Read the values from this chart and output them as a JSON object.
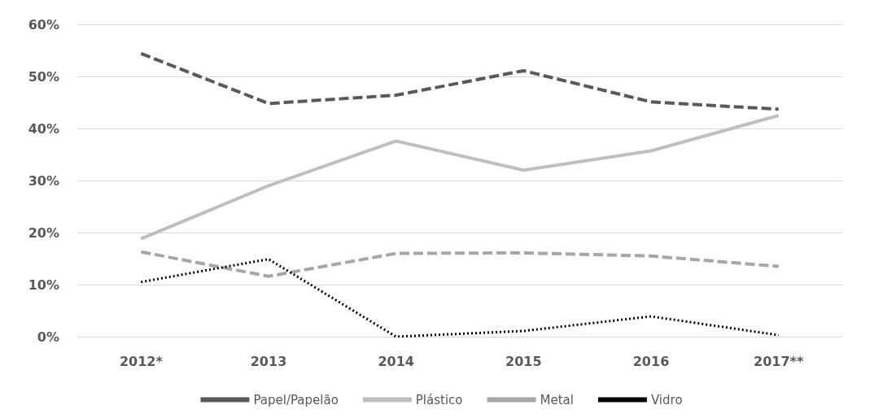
{
  "chart_data": {
    "type": "line",
    "categories": [
      "2012*",
      "2013",
      "2014",
      "2015",
      "2016",
      "2017**"
    ],
    "series": [
      {
        "name": "Papel/Papelão",
        "color": "#595959",
        "line_style": "dashed",
        "values": [
          54.4,
          44.8,
          46.4,
          51.1,
          45.1,
          43.7
        ]
      },
      {
        "name": "Plástico",
        "color": "#bfbfbf",
        "line_style": "solid",
        "values": [
          18.8,
          29.0,
          37.6,
          32.0,
          35.7,
          42.5
        ]
      },
      {
        "name": "Metal",
        "color": "#a6a6a6",
        "line_style": "dashed",
        "values": [
          16.3,
          11.6,
          16.0,
          16.1,
          15.5,
          13.5
        ]
      },
      {
        "name": "Vidro",
        "color": "#000000",
        "line_style": "dotted",
        "values": [
          10.5,
          14.9,
          0,
          1.1,
          3.9,
          0.3
        ]
      }
    ],
    "ylim": [
      0,
      60
    ],
    "yticks": [
      {
        "value": 0,
        "label": "0%"
      },
      {
        "value": 10,
        "label": "10%"
      },
      {
        "value": 20,
        "label": "20%"
      },
      {
        "value": 30,
        "label": "30%"
      },
      {
        "value": 40,
        "label": "40%"
      },
      {
        "value": 50,
        "label": "50%"
      },
      {
        "value": 60,
        "label": "60%"
      }
    ],
    "grid": "y",
    "legend": "bottom",
    "marker": "none"
  }
}
